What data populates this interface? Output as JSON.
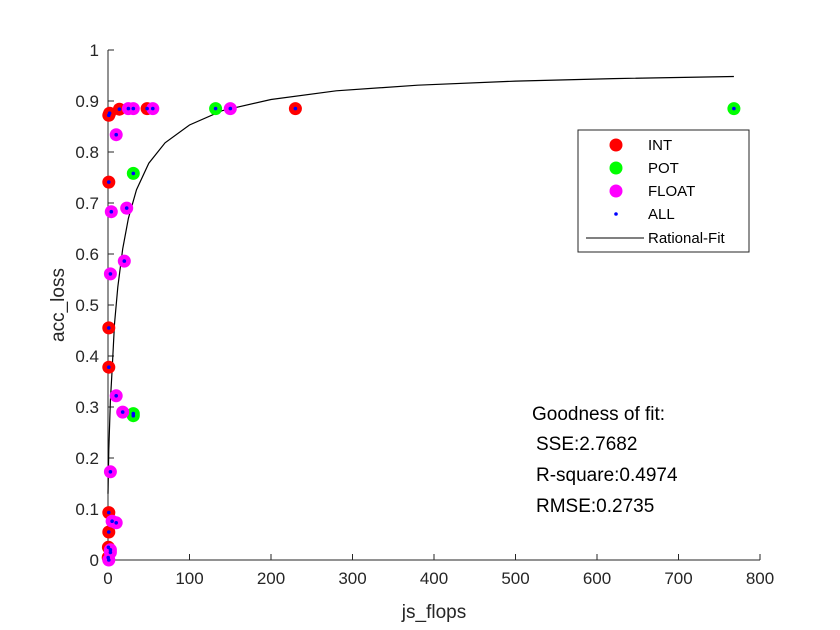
{
  "chart_data": {
    "type": "scatter",
    "xlabel": "js_flops",
    "ylabel": "acc_loss",
    "xlim": [
      0,
      800
    ],
    "ylim": [
      0,
      1
    ],
    "x_ticks": [
      0,
      100,
      200,
      300,
      400,
      500,
      600,
      700,
      800
    ],
    "y_ticks": [
      0,
      0.1,
      0.2,
      0.3,
      0.4,
      0.5,
      0.6,
      0.7,
      0.8,
      0.9,
      1
    ],
    "x_tick_labels": [
      "0",
      "100",
      "200",
      "300",
      "400",
      "500",
      "600",
      "700",
      "800"
    ],
    "y_tick_labels": [
      "0",
      "0.1",
      "0.2",
      "0.3",
      "0.4",
      "0.5",
      "0.6",
      "0.7",
      "0.8",
      "0.9",
      "1"
    ],
    "grid": false,
    "legend_position": "upper-right",
    "series": [
      {
        "name": "INT",
        "color": "#ff0000",
        "marker": "filled-circle",
        "points": [
          [
            1,
            0.872
          ],
          [
            2,
            0.876
          ],
          [
            14,
            0.884
          ],
          [
            48,
            0.885
          ],
          [
            230,
            0.885
          ],
          [
            1,
            0.741
          ],
          [
            1,
            0.455
          ],
          [
            1,
            0.378
          ],
          [
            1,
            0.093
          ],
          [
            1,
            0.055
          ],
          [
            0.5,
            0.025
          ],
          [
            0.3,
            0.005
          ]
        ]
      },
      {
        "name": "POT",
        "color": "#00ff00",
        "marker": "filled-circle",
        "points": [
          [
            132,
            0.885
          ],
          [
            768,
            0.885
          ],
          [
            31,
            0.758
          ],
          [
            31,
            0.283
          ],
          [
            31,
            0.287
          ]
        ]
      },
      {
        "name": "FLOAT",
        "color": "#ff00ff",
        "marker": "filled-circle",
        "points": [
          [
            10,
            0.834
          ],
          [
            25,
            0.885
          ],
          [
            31,
            0.885
          ],
          [
            55,
            0.885
          ],
          [
            150,
            0.885
          ],
          [
            23,
            0.69
          ],
          [
            4,
            0.683
          ],
          [
            20,
            0.586
          ],
          [
            3,
            0.561
          ],
          [
            10,
            0.322
          ],
          [
            18,
            0.29
          ],
          [
            3,
            0.173
          ],
          [
            10,
            0.073
          ],
          [
            5,
            0.076
          ],
          [
            3,
            0.02
          ],
          [
            3,
            0.015
          ],
          [
            1,
            0.0
          ]
        ]
      },
      {
        "name": "ALL",
        "color": "#0000ff",
        "marker": "dot",
        "points": [
          [
            1,
            0.872
          ],
          [
            2,
            0.876
          ],
          [
            14,
            0.884
          ],
          [
            48,
            0.885
          ],
          [
            230,
            0.885
          ],
          [
            1,
            0.741
          ],
          [
            1,
            0.455
          ],
          [
            1,
            0.378
          ],
          [
            1,
            0.093
          ],
          [
            1,
            0.055
          ],
          [
            0.5,
            0.025
          ],
          [
            0.3,
            0.005
          ],
          [
            132,
            0.885
          ],
          [
            768,
            0.885
          ],
          [
            31,
            0.758
          ],
          [
            31,
            0.283
          ],
          [
            31,
            0.287
          ],
          [
            10,
            0.834
          ],
          [
            25,
            0.885
          ],
          [
            31,
            0.885
          ],
          [
            55,
            0.885
          ],
          [
            150,
            0.885
          ],
          [
            23,
            0.69
          ],
          [
            4,
            0.683
          ],
          [
            20,
            0.586
          ],
          [
            3,
            0.561
          ],
          [
            10,
            0.322
          ],
          [
            18,
            0.29
          ],
          [
            3,
            0.173
          ],
          [
            10,
            0.073
          ],
          [
            5,
            0.076
          ],
          [
            3,
            0.02
          ],
          [
            3,
            0.015
          ],
          [
            1,
            0.0
          ]
        ]
      },
      {
        "name": "Rational-Fit",
        "color": "#000000",
        "type": "line",
        "x": [
          0,
          1,
          3,
          5,
          8,
          12,
          18,
          25,
          35,
          50,
          70,
          100,
          140,
          200,
          280,
          380,
          500,
          620,
          768
        ],
        "y": [
          0.13,
          0.216,
          0.313,
          0.372,
          0.463,
          0.535,
          0.61,
          0.67,
          0.726,
          0.778,
          0.818,
          0.853,
          0.881,
          0.903,
          0.92,
          0.931,
          0.939,
          0.944,
          0.948
        ]
      }
    ]
  },
  "annotations": {
    "gof_title": "Goodness of fit:",
    "sse": "SSE:2.7682",
    "rsquare": "R-square:0.4974",
    "rmse": "RMSE:0.2735"
  }
}
